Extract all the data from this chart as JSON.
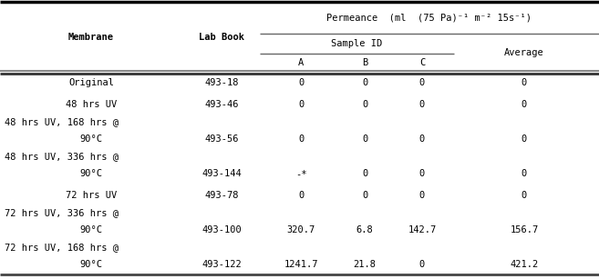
{
  "header_line1": "Permeance  (ml  (75 Pa)⁻¹ m⁻² 15s⁻¹)",
  "header_line2": "Sample ID",
  "col_a_header": "A",
  "col_b_header": "B",
  "col_c_header": "C",
  "col_avg_header": "Average",
  "membrane_header": "Membrane",
  "labbook_header": "Lab Book",
  "rows": [
    {
      "membrane": "Original",
      "line2": "",
      "labbook": "493-18",
      "A": "0",
      "B": "0",
      "C": "0",
      "avg": "0"
    },
    {
      "membrane": "48 hrs UV",
      "line2": "",
      "labbook": "493-46",
      "A": "0",
      "B": "0",
      "C": "0",
      "avg": "0"
    },
    {
      "membrane": "48 hrs UV, 168 hrs @",
      "line2": "90°C",
      "labbook": "493-56",
      "A": "0",
      "B": "0",
      "C": "0",
      "avg": "0"
    },
    {
      "membrane": "48 hrs UV, 336 hrs @",
      "line2": "90°C",
      "labbook": "493-144",
      "A": "-*",
      "B": "0",
      "C": "0",
      "avg": "0"
    },
    {
      "membrane": "72 hrs UV",
      "line2": "",
      "labbook": "493-78",
      "A": "0",
      "B": "0",
      "C": "0",
      "avg": "0"
    },
    {
      "membrane": "72 hrs UV, 336 hrs @",
      "line2": "90°C",
      "labbook": "493-100",
      "A": "320.7",
      "B": "6.8",
      "C": "142.7",
      "avg": "156.7"
    },
    {
      "membrane": "72 hrs UV, 168 hrs @",
      "line2": "90°C",
      "labbook": "493-122",
      "A": "1241.7",
      "B": "21.8",
      "C": "0",
      "avg": "421.2"
    }
  ],
  "bg_color": "#ffffff",
  "text_color": "#000000",
  "line_color": "#555555",
  "thick_line_color": "#000000",
  "font_size": 7.5
}
